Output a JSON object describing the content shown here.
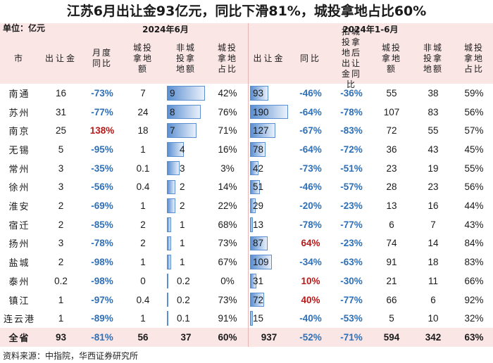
{
  "title": "江苏6月出让金93亿元，同比下滑81%，城投拿地占比60%",
  "unit_label": "单位：亿元",
  "period_left": "2024年6月",
  "period_right": "2024年1-6月",
  "footer": "资料来源：中指院，华西证券研究所",
  "headers": [
    "市",
    "出让金",
    "月度同比",
    "城投拿地额",
    "非城投拿地额",
    "城投拿地占比",
    "出让金",
    "同比",
    "扣城投拿地后出让金同比",
    "城投拿地额",
    "非城投拿地额",
    "城投拿地占比"
  ],
  "colors": {
    "header_bg": "#fbe6e6",
    "bar": "#5b8fd1",
    "negative": "#2e6fb5",
    "positive": "#b31b1b",
    "total_bg": "#fbe6e6"
  },
  "chart_data": {
    "type": "table",
    "rows": [
      [
        "南通",
        "16",
        "-73%",
        "7",
        "9",
        "42%",
        "93",
        "-46%",
        "-36%",
        "55",
        "38",
        "59%"
      ],
      [
        "苏州",
        "31",
        "-77%",
        "24",
        "8",
        "76%",
        "190",
        "-64%",
        "-78%",
        "107",
        "83",
        "56%"
      ],
      [
        "南京",
        "25",
        "138%",
        "18",
        "7",
        "71%",
        "127",
        "-67%",
        "-83%",
        "72",
        "55",
        "57%"
      ],
      [
        "无锡",
        "5",
        "-95%",
        "1",
        "4",
        "16%",
        "78",
        "-64%",
        "-72%",
        "36",
        "43",
        "45%"
      ],
      [
        "常州",
        "3",
        "-35%",
        "0.1",
        "3",
        "3%",
        "42",
        "-73%",
        "-51%",
        "23",
        "19",
        "55%"
      ],
      [
        "徐州",
        "3",
        "-56%",
        "0.4",
        "2",
        "14%",
        "51",
        "-46%",
        "-57%",
        "28",
        "23",
        "56%"
      ],
      [
        "淮安",
        "2",
        "-69%",
        "1",
        "2",
        "22%",
        "29",
        "-20%",
        "-23%",
        "13",
        "16",
        "44%"
      ],
      [
        "宿迁",
        "2",
        "-85%",
        "2",
        "1",
        "68%",
        "13",
        "-78%",
        "-77%",
        "6",
        "7",
        "43%"
      ],
      [
        "扬州",
        "3",
        "-78%",
        "2",
        "1",
        "73%",
        "87",
        "64%",
        "-23%",
        "74",
        "14",
        "84%"
      ],
      [
        "盐城",
        "2",
        "-98%",
        "1",
        "1",
        "67%",
        "109",
        "-34%",
        "-63%",
        "91",
        "18",
        "83%"
      ],
      [
        "泰州",
        "0.2",
        "-98%",
        "0",
        "0.2",
        "0%",
        "31",
        "10%",
        "-30%",
        "21",
        "11",
        "66%"
      ],
      [
        "镇江",
        "1",
        "-97%",
        "0.4",
        "0.2",
        "73%",
        "72",
        "40%",
        "-77%",
        "66",
        "6",
        "92%"
      ],
      [
        "连云港",
        "1",
        "-89%",
        "1",
        "0.1",
        "91%",
        "15",
        "-40%",
        "-53%",
        "5",
        "10",
        "32%"
      ]
    ],
    "total": [
      "全省",
      "93",
      "-81%",
      "56",
      "37",
      "60%",
      "937",
      "-52%",
      "-71%",
      "594",
      "342",
      "63%"
    ]
  }
}
